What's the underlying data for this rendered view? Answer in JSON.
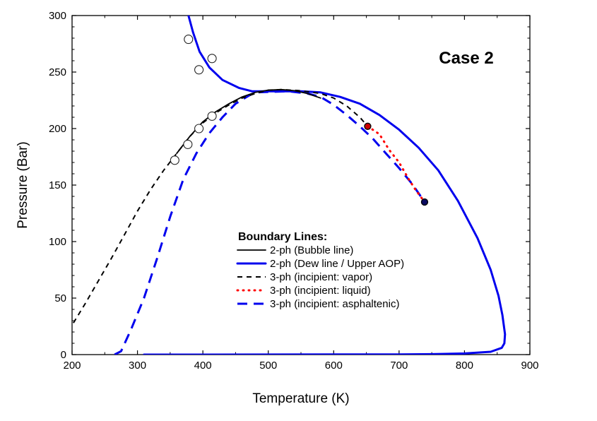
{
  "chart_data": {
    "type": "line",
    "xlabel": "Temperature (K)",
    "ylabel": "Pressure (Bar)",
    "xlim": [
      200,
      900
    ],
    "ylim": [
      0,
      300
    ],
    "x_major_ticks": [
      "200",
      "300",
      "400",
      "500",
      "600",
      "700",
      "800",
      "900"
    ],
    "y_major_ticks": [
      "0",
      "50",
      "100",
      "150",
      "200",
      "250",
      "300"
    ],
    "annotation": "Case 2",
    "legend": {
      "title": "Boundary Lines:",
      "placement": "lower-center"
    },
    "series": [
      {
        "name": "2-ph (Bubble line)",
        "color": "#000000",
        "style": "solid",
        "points": [
          [
            360,
            178
          ],
          [
            380,
            193
          ],
          [
            400,
            206
          ],
          [
            420,
            215
          ],
          [
            440,
            222
          ],
          [
            460,
            228
          ],
          [
            480,
            232
          ],
          [
            500,
            234
          ],
          [
            520,
            234.5
          ],
          [
            540,
            233.5
          ],
          [
            560,
            231
          ],
          [
            580,
            227
          ]
        ]
      },
      {
        "name": "2-ph (Dew line / Upper AOP)",
        "color": "#0000ee",
        "style": "solid",
        "points": [
          [
            377,
            302
          ],
          [
            385,
            285
          ],
          [
            395,
            268
          ],
          [
            410,
            254
          ],
          [
            430,
            243
          ],
          [
            455,
            236
          ],
          [
            475,
            233
          ],
          [
            500,
            233
          ],
          [
            550,
            233
          ],
          [
            580,
            232
          ],
          [
            610,
            228
          ],
          [
            640,
            222
          ],
          [
            670,
            212
          ],
          [
            700,
            199
          ],
          [
            730,
            183
          ],
          [
            760,
            163
          ],
          [
            790,
            136
          ],
          [
            820,
            103
          ],
          [
            840,
            75
          ],
          [
            852,
            52
          ],
          [
            858,
            35
          ],
          [
            862,
            18
          ],
          [
            861,
            10
          ],
          [
            857,
            6
          ],
          [
            840,
            2.5
          ],
          [
            800,
            1
          ],
          [
            750,
            0.4
          ],
          [
            700,
            0.2
          ],
          [
            600,
            0.1
          ],
          [
            500,
            0.05
          ],
          [
            400,
            0.02
          ],
          [
            310,
            0
          ]
        ]
      },
      {
        "name": "3-ph (incipient: vapor)",
        "color": "#000000",
        "style": "dashed",
        "points": [
          [
            202,
            28
          ],
          [
            220,
            45
          ],
          [
            240,
            65
          ],
          [
            260,
            85
          ],
          [
            280,
            106
          ],
          [
            300,
            127
          ],
          [
            320,
            146
          ],
          [
            340,
            163
          ],
          [
            360,
            178
          ],
          [
            380,
            193
          ],
          [
            400,
            205
          ],
          [
            420,
            214
          ],
          [
            440,
            221
          ],
          [
            460,
            227
          ],
          [
            480,
            231
          ],
          [
            500,
            234
          ],
          [
            520,
            234.5
          ],
          [
            550,
            233.5
          ],
          [
            580,
            231
          ],
          [
            600,
            227
          ],
          [
            620,
            220
          ],
          [
            640,
            210
          ],
          [
            652,
            202
          ]
        ]
      },
      {
        "name": "3-ph (incipient: liquid)",
        "color": "#ff0000",
        "style": "dotted",
        "points": [
          [
            652,
            202
          ],
          [
            670,
            195
          ],
          [
            685,
            181
          ],
          [
            700,
            170
          ],
          [
            715,
            155
          ],
          [
            725,
            146
          ],
          [
            739,
            135
          ]
        ]
      },
      {
        "name": "3-ph (incipient: asphaltenic)",
        "color": "#0000ee",
        "style": "dashed-long",
        "points": [
          [
            265,
            0
          ],
          [
            275,
            3
          ],
          [
            290,
            22
          ],
          [
            310,
            50
          ],
          [
            330,
            85
          ],
          [
            350,
            122
          ],
          [
            370,
            155
          ],
          [
            390,
            178
          ],
          [
            410,
            196
          ],
          [
            430,
            210
          ],
          [
            450,
            222
          ],
          [
            470,
            229
          ],
          [
            480,
            232
          ],
          [
            530,
            233
          ],
          [
            560,
            231
          ],
          [
            580,
            228
          ],
          [
            600,
            221
          ],
          [
            620,
            212
          ],
          [
            640,
            202
          ],
          [
            660,
            191
          ],
          [
            680,
            178
          ],
          [
            700,
            165
          ],
          [
            720,
            151
          ],
          [
            739,
            135
          ]
        ]
      }
    ],
    "markers": [
      {
        "name": "Experimental points (upper)",
        "style": "open-circle",
        "points": [
          [
            378,
            279
          ],
          [
            414,
            262
          ],
          [
            394,
            252
          ]
        ]
      },
      {
        "name": "Experimental points (lower)",
        "style": "open-circle",
        "points": [
          [
            357,
            172
          ],
          [
            377,
            186
          ],
          [
            394,
            200
          ],
          [
            414,
            211
          ]
        ]
      },
      {
        "name": "Tricritical points",
        "style": "filled-circle",
        "points": [
          [
            652,
            202
          ],
          [
            739,
            135
          ]
        ]
      }
    ]
  }
}
